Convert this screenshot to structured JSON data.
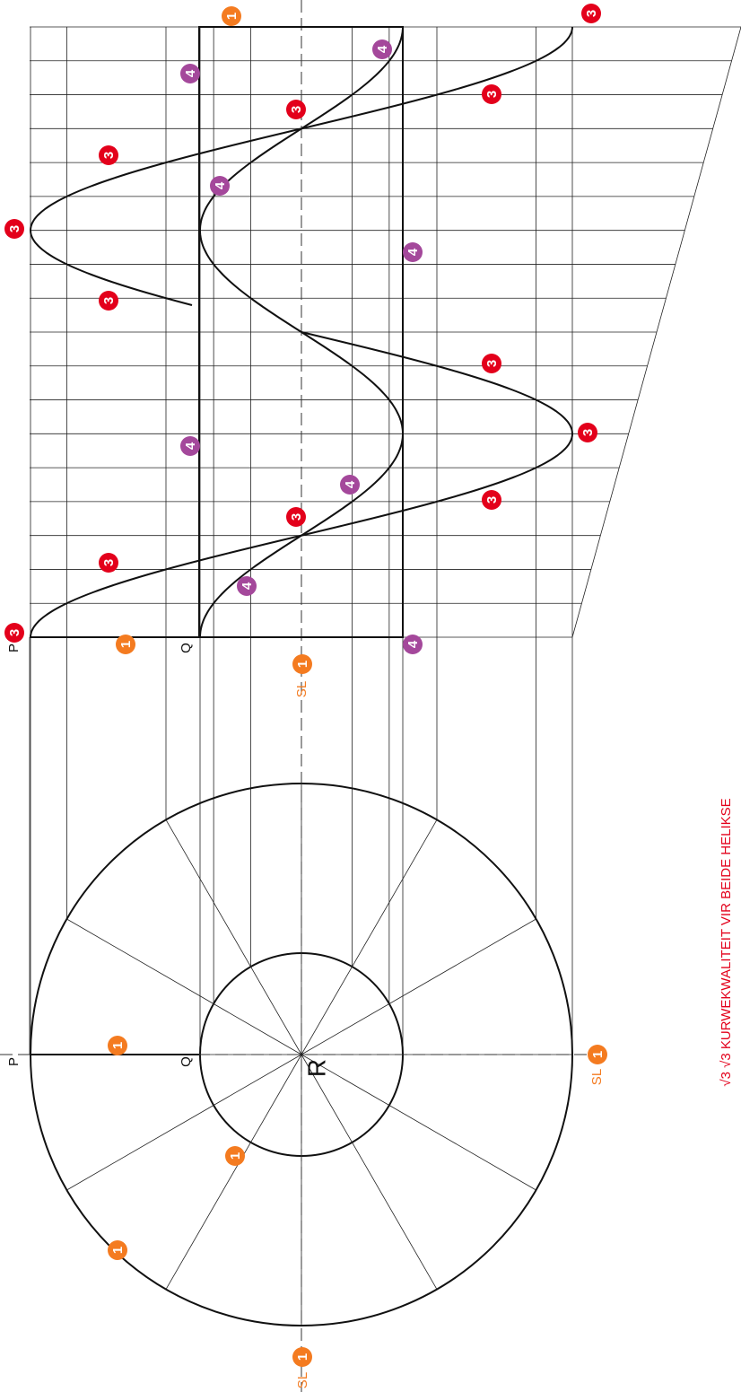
{
  "labels": {
    "p": "P",
    "q": "Q",
    "r": "R",
    "sl": "SL"
  },
  "note": "√3 √3 KURWEKWALITEIT VIR BEIDE HELIKSE",
  "badges": [
    {
      "label": "1",
      "color": "#f47b20"
    },
    {
      "label": "1",
      "color": "#f47b20"
    },
    {
      "label": "1",
      "color": "#f47b20"
    },
    {
      "label": "1",
      "color": "#f47b20"
    },
    {
      "label": "1",
      "color": "#f47b20"
    },
    {
      "label": "1",
      "color": "#f47b20"
    },
    {
      "label": "1",
      "color": "#f47b20"
    },
    {
      "label": "1",
      "color": "#f47b20"
    },
    {
      "label": "3",
      "color": "#e3001b"
    },
    {
      "label": "3",
      "color": "#e3001b"
    },
    {
      "label": "3",
      "color": "#e3001b"
    },
    {
      "label": "3",
      "color": "#e3001b"
    },
    {
      "label": "3",
      "color": "#e3001b"
    },
    {
      "label": "3",
      "color": "#e3001b"
    },
    {
      "label": "3",
      "color": "#e3001b"
    },
    {
      "label": "3",
      "color": "#e3001b"
    },
    {
      "label": "3",
      "color": "#e3001b"
    },
    {
      "label": "3",
      "color": "#e3001b"
    },
    {
      "label": "3",
      "color": "#e3001b"
    },
    {
      "label": "3",
      "color": "#e3001b"
    },
    {
      "label": "4",
      "color": "#a4489b"
    },
    {
      "label": "4",
      "color": "#a4489b"
    },
    {
      "label": "4",
      "color": "#a4489b"
    },
    {
      "label": "4",
      "color": "#a4489b"
    },
    {
      "label": "4",
      "color": "#a4489b"
    },
    {
      "label": "4",
      "color": "#a4489b"
    },
    {
      "label": "4",
      "color": "#a4489b"
    },
    {
      "label": "4",
      "color": "#a4489b"
    }
  ]
}
